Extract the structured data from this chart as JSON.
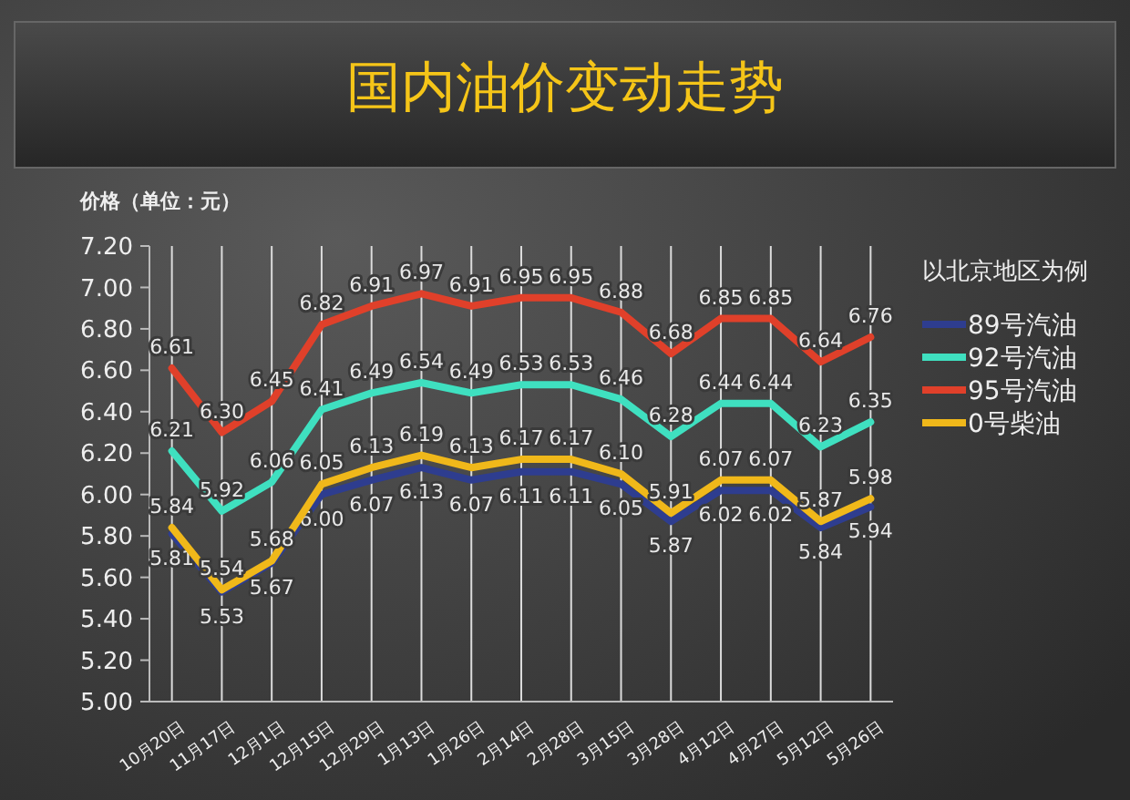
{
  "chart_data": {
    "type": "line",
    "title": "国内油价变动走势",
    "ylabel": "价格（单位：元）",
    "legend_title": "以北京地区为例",
    "categories": [
      "10月20日",
      "11月17日",
      "12月1日",
      "12月15日",
      "12月29日",
      "1月13日",
      "1月26日",
      "2月14日",
      "2月28日",
      "3月15日",
      "3月28日",
      "4月12日",
      "4月27日",
      "5月12日",
      "5月26日"
    ],
    "series": [
      {
        "name": "89号汽油",
        "color": "#2e3d8f",
        "values": [
          5.81,
          5.53,
          5.67,
          6.0,
          6.07,
          6.13,
          6.07,
          6.11,
          6.11,
          6.05,
          5.87,
          6.02,
          6.02,
          5.84,
          5.94
        ],
        "value_labels": [
          "5.81",
          "5.53",
          "5.67",
          "6.00",
          "6.07",
          "6.13",
          "6.07",
          "6.11",
          "6.11",
          "6.05",
          "5.87",
          "6.02",
          "6.02",
          "5.84",
          "5.94"
        ]
      },
      {
        "name": "92号汽油",
        "color": "#3fe0c0",
        "values": [
          6.21,
          5.92,
          6.06,
          6.41,
          6.49,
          6.54,
          6.49,
          6.53,
          6.53,
          6.46,
          6.28,
          6.44,
          6.44,
          6.23,
          6.35
        ],
        "value_labels": [
          "6.21",
          "5.92",
          "6.06",
          "6.41",
          "6.49",
          "6.54",
          "6.49",
          "6.53",
          "6.53",
          "6.46",
          "6.28",
          "6.44",
          "6.44",
          "6.23",
          "6.35"
        ]
      },
      {
        "name": "95号汽油",
        "color": "#e0402a",
        "values": [
          6.61,
          6.3,
          6.45,
          6.82,
          6.91,
          6.97,
          6.91,
          6.95,
          6.95,
          6.88,
          6.68,
          6.85,
          6.85,
          6.64,
          6.76
        ],
        "value_labels": [
          "6.61",
          "6.30",
          "6.45",
          "6.82",
          "6.91",
          "6.97",
          "6.91",
          "6.95",
          "6.95",
          "6.88",
          "6.68",
          "6.85",
          "6.85",
          "6.64",
          "6.76"
        ]
      },
      {
        "name": "0号柴油",
        "color": "#f0b81a",
        "values": [
          5.84,
          5.54,
          5.68,
          6.05,
          6.13,
          6.19,
          6.13,
          6.17,
          6.17,
          6.1,
          5.91,
          6.07,
          6.07,
          5.87,
          5.98
        ],
        "value_labels": [
          "5.84",
          "5.54",
          "5.68",
          "6.05",
          "6.13",
          "6.19",
          "6.13",
          "6.17",
          "6.17",
          "6.10",
          "5.91",
          "6.07",
          "6.07",
          "5.87",
          "5.98"
        ]
      }
    ],
    "ylim": [
      5,
      7.2
    ],
    "yticks": [
      {
        "value": 5,
        "label": "5.00"
      },
      {
        "value": 5.2,
        "label": "5.20"
      },
      {
        "value": 5.4,
        "label": "5.40"
      },
      {
        "value": 5.6,
        "label": "5.60"
      },
      {
        "value": 5.8,
        "label": "5.80"
      },
      {
        "value": 6,
        "label": "6.00"
      },
      {
        "value": 6.2,
        "label": "6.20"
      },
      {
        "value": 6.4,
        "label": "6.40"
      },
      {
        "value": 6.6,
        "label": "6.60"
      },
      {
        "value": 6.8,
        "label": "6.80"
      },
      {
        "value": 7,
        "label": "7.00"
      },
      {
        "value": 7.2,
        "label": "7.20"
      }
    ],
    "grid": "x",
    "legend": "right",
    "marker": "none",
    "line_style": "solid"
  }
}
